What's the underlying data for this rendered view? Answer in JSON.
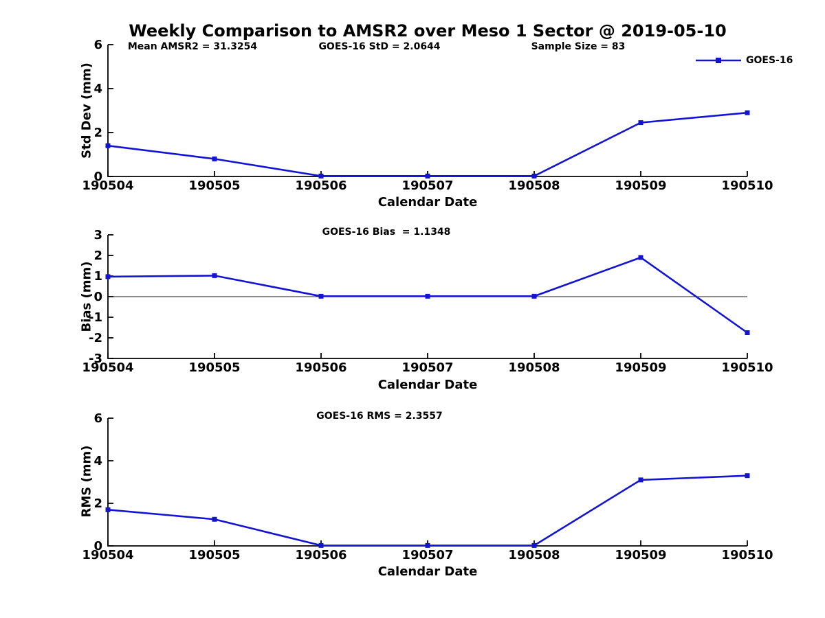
{
  "page": {
    "title": "Weekly Comparison to AMSR2 over Meso 1 Sector @ 2019-05-10"
  },
  "legend": {
    "label": "GOES-16"
  },
  "colors": {
    "series": "#1313d2",
    "axis": "#000000",
    "zero_line": "#1a1a1a",
    "text": "#000000"
  },
  "chart_data": [
    {
      "type": "line",
      "panel": "std-dev",
      "annotations": [
        "Mean AMSR2 = 31.3254",
        "GOES-16 StD = 2.0644",
        "Sample Size = 83"
      ],
      "categories": [
        "190504",
        "190505",
        "190506",
        "190507",
        "190508",
        "190509",
        "190510"
      ],
      "series": [
        {
          "name": "GOES-16",
          "values": [
            1.4,
            0.8,
            0.02,
            0.02,
            0.02,
            2.45,
            2.9
          ]
        }
      ],
      "xlabel": "Calendar Date",
      "ylabel": "Std Dev (mm)",
      "ylim": [
        0,
        6
      ],
      "yticks": [
        0,
        2,
        4,
        6
      ],
      "zero_line": false,
      "grid": false,
      "legend_position": "top-right",
      "marker": "square"
    },
    {
      "type": "line",
      "panel": "bias",
      "annotations": [
        "GOES-16 Bias  = 1.1348"
      ],
      "categories": [
        "190504",
        "190505",
        "190506",
        "190507",
        "190508",
        "190509",
        "190510"
      ],
      "series": [
        {
          "name": "GOES-16",
          "values": [
            0.97,
            1.02,
            0.02,
            0.02,
            0.02,
            1.9,
            -1.75
          ]
        }
      ],
      "xlabel": "Calendar Date",
      "ylabel": "Bias (mm)",
      "ylim": [
        -3,
        3
      ],
      "yticks": [
        3,
        2,
        1,
        0,
        -1,
        -2,
        -3
      ],
      "zero_line": true,
      "grid": false,
      "marker": "square"
    },
    {
      "type": "line",
      "panel": "rms",
      "annotations": [
        "GOES-16 RMS = 2.3557"
      ],
      "categories": [
        "190504",
        "190505",
        "190506",
        "190507",
        "190508",
        "190509",
        "190510"
      ],
      "series": [
        {
          "name": "GOES-16",
          "values": [
            1.7,
            1.25,
            0.02,
            0.02,
            0.02,
            3.1,
            3.3
          ]
        }
      ],
      "xlabel": "Calendar Date",
      "ylabel": "RMS (mm)",
      "ylim": [
        0,
        6
      ],
      "yticks": [
        0,
        2,
        4,
        6
      ],
      "zero_line": false,
      "grid": false,
      "marker": "square"
    }
  ]
}
